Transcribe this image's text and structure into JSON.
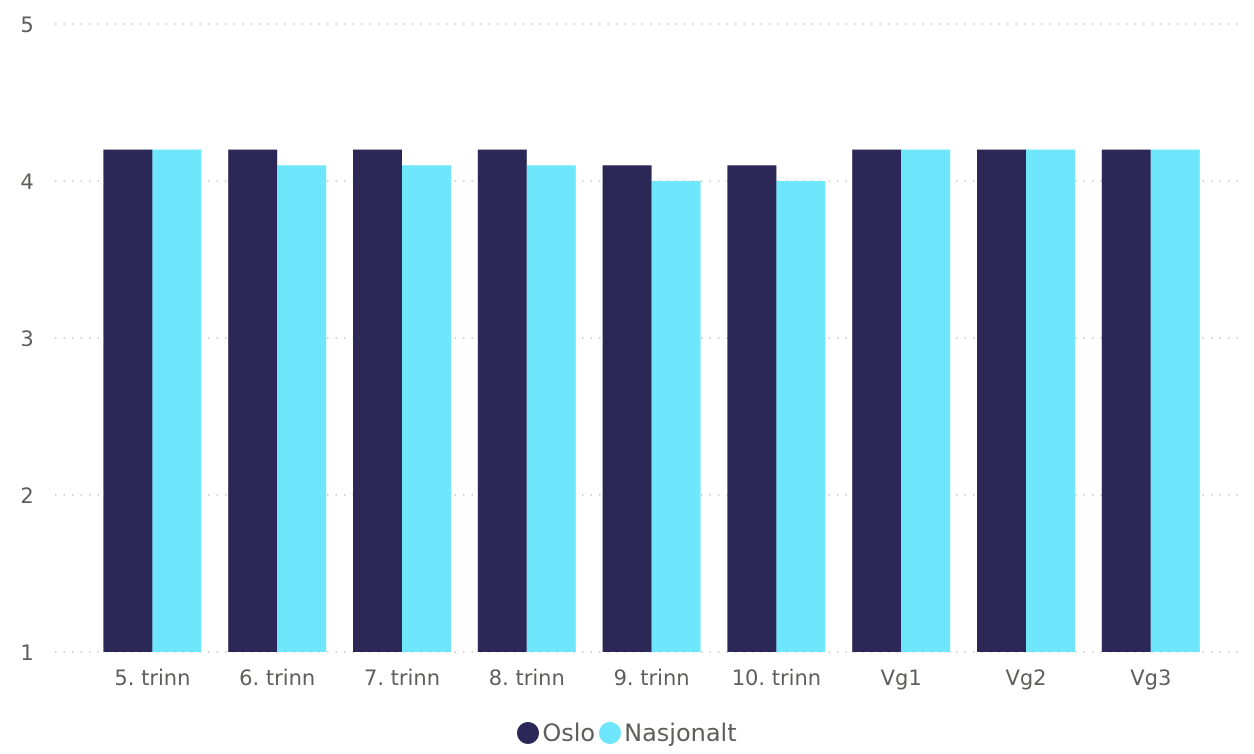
{
  "chart_data": {
    "type": "bar",
    "title": "",
    "xlabel": "",
    "ylabel": "",
    "categories": [
      "5. trinn",
      "6. trinn",
      "7. trinn",
      "8. trinn",
      "9. trinn",
      "10. trinn",
      "Vg1",
      "Vg2",
      "Vg3"
    ],
    "series": [
      {
        "name": "Oslo",
        "color": "#2b2757",
        "values": [
          4.2,
          4.2,
          4.2,
          4.2,
          4.1,
          4.1,
          4.2,
          4.2,
          4.2
        ]
      },
      {
        "name": "Nasjonalt",
        "color": "#6ee6fb",
        "values": [
          4.2,
          4.1,
          4.1,
          4.1,
          4.0,
          4.0,
          4.2,
          4.2,
          4.2
        ]
      }
    ],
    "ylim": [
      1,
      5
    ],
    "yticks": [
      1,
      2,
      3,
      4,
      5
    ],
    "grid": true,
    "legend_position": "bottom-center"
  }
}
